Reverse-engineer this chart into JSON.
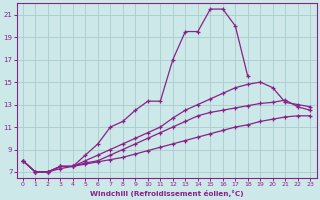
{
  "xlabel": "Windchill (Refroidissement éolien,°C)",
  "bg_color": "#cde8e8",
  "grid_color": "#aacccc",
  "line_color": "#882288",
  "xlim": [
    -0.5,
    23.5
  ],
  "ylim": [
    6.5,
    22.0
  ],
  "yticks": [
    7,
    9,
    11,
    13,
    15,
    17,
    19,
    21
  ],
  "xticks": [
    0,
    1,
    2,
    3,
    4,
    5,
    6,
    7,
    8,
    9,
    10,
    11,
    12,
    13,
    14,
    15,
    16,
    17,
    18,
    19,
    20,
    21,
    22,
    23
  ],
  "series": [
    {
      "x": [
        0,
        1,
        2,
        3,
        4,
        5,
        6,
        7,
        8,
        9,
        10,
        11,
        12,
        13,
        14,
        15,
        16,
        17,
        18,
        19,
        20,
        21,
        22,
        23
      ],
      "y": [
        8.0,
        7.0,
        7.0,
        7.5,
        7.5,
        8.5,
        9.5,
        11.0,
        11.5,
        12.5,
        13.3,
        13.3,
        17.0,
        19.5,
        19.5,
        21.5,
        21.5,
        20.0,
        15.5,
        null,
        null,
        null,
        null,
        null
      ]
    },
    {
      "x": [
        0,
        1,
        2,
        3,
        4,
        5,
        6,
        7,
        8,
        9,
        10,
        11,
        12,
        13,
        14,
        15,
        16,
        17,
        18,
        19,
        20,
        21,
        22,
        23
      ],
      "y": [
        8.0,
        7.0,
        7.0,
        7.5,
        7.5,
        8.0,
        8.5,
        9.0,
        9.5,
        10.0,
        10.5,
        11.0,
        11.8,
        12.5,
        13.0,
        13.5,
        14.0,
        14.5,
        14.8,
        15.0,
        14.5,
        13.2,
        13.0,
        12.8
      ]
    },
    {
      "x": [
        0,
        1,
        2,
        3,
        4,
        5,
        6,
        7,
        8,
        9,
        10,
        11,
        12,
        13,
        14,
        15,
        16,
        17,
        18,
        19,
        20,
        21,
        22,
        23
      ],
      "y": [
        8.0,
        7.0,
        7.0,
        7.5,
        7.5,
        7.8,
        8.0,
        8.5,
        9.0,
        9.5,
        10.0,
        10.5,
        11.0,
        11.5,
        12.0,
        12.3,
        12.5,
        12.7,
        12.9,
        13.1,
        13.2,
        13.4,
        12.8,
        12.5
      ]
    },
    {
      "x": [
        0,
        1,
        2,
        3,
        4,
        5,
        6,
        7,
        8,
        9,
        10,
        11,
        12,
        13,
        14,
        15,
        16,
        17,
        18,
        19,
        20,
        21,
        22,
        23
      ],
      "y": [
        8.0,
        7.0,
        7.0,
        7.3,
        7.5,
        7.7,
        7.9,
        8.1,
        8.3,
        8.6,
        8.9,
        9.2,
        9.5,
        9.8,
        10.1,
        10.4,
        10.7,
        11.0,
        11.2,
        11.5,
        11.7,
        11.9,
        12.0,
        12.0
      ]
    }
  ]
}
